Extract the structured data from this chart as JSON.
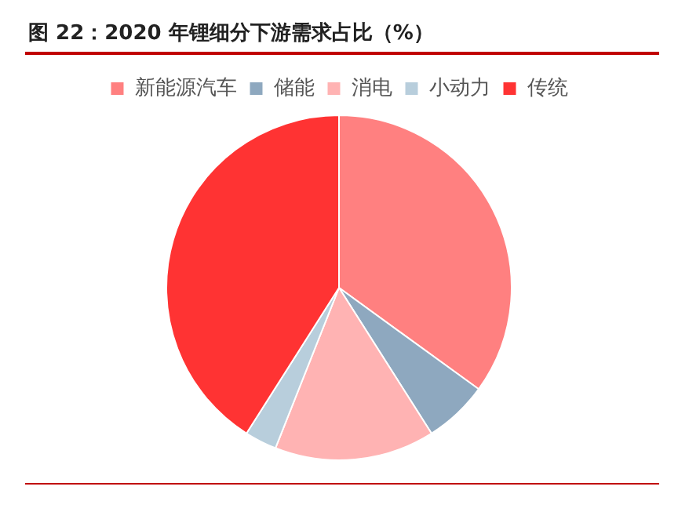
{
  "chart_data": {
    "type": "pie",
    "title": "图 22：2020 年锂细分下游需求占比（%）",
    "categories": [
      "新能源汽车",
      "储能",
      "消电",
      "小动力",
      "传统"
    ],
    "values": [
      35,
      6,
      15,
      3,
      41
    ],
    "colors": [
      "#ff8080",
      "#8ea8bf",
      "#ffb3b3",
      "#b8cedc",
      "#ff3333"
    ],
    "legend": "top"
  }
}
